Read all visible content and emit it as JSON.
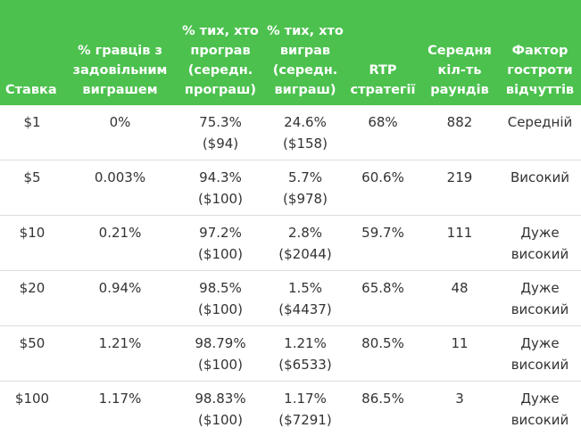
{
  "headers": [
    "Ставка",
    "% гравців з задовільним виграшем",
    "% тих, хто програв (середн. програш)",
    "% тих, хто виграв (середн. виграш)",
    "RTP стратегії",
    "Середня кіл-ть раундів",
    "Фактор гостроти відчуттів"
  ],
  "rows": [
    {
      "bet": "$1",
      "satisfied": "0%",
      "lost_pct": "75.3%",
      "lost_avg": "($94)",
      "won_pct": "24.6%",
      "won_avg": "($158)",
      "rtp": "68%",
      "rounds": "882",
      "thrill_1": "Середній",
      "thrill_2": ""
    },
    {
      "bet": "$5",
      "satisfied": "0.003%",
      "lost_pct": "94.3%",
      "lost_avg": "($100)",
      "won_pct": "5.7%",
      "won_avg": "($978)",
      "rtp": "60.6%",
      "rounds": "219",
      "thrill_1": "Високий",
      "thrill_2": ""
    },
    {
      "bet": "$10",
      "satisfied": "0.21%",
      "lost_pct": "97.2%",
      "lost_avg": "($100)",
      "won_pct": "2.8%",
      "won_avg": "($2044)",
      "rtp": "59.7%",
      "rounds": "111",
      "thrill_1": "Дуже",
      "thrill_2": "високий"
    },
    {
      "bet": "$20",
      "satisfied": "0.94%",
      "lost_pct": "98.5%",
      "lost_avg": "($100)",
      "won_pct": "1.5%",
      "won_avg": "($4437)",
      "rtp": "65.8%",
      "rounds": "48",
      "thrill_1": "Дуже",
      "thrill_2": "високий"
    },
    {
      "bet": "$50",
      "satisfied": "1.21%",
      "lost_pct": "98.79%",
      "lost_avg": "($100)",
      "won_pct": "1.21%",
      "won_avg": "($6533)",
      "rtp": "80.5%",
      "rounds": "11",
      "thrill_1": "Дуже",
      "thrill_2": "високий"
    },
    {
      "bet": "$100",
      "satisfied": "1.17%",
      "lost_pct": "98.83%",
      "lost_avg": "($100)",
      "won_pct": "1.17%",
      "won_avg": "($7291)",
      "rtp": "86.5%",
      "rounds": "3",
      "thrill_1": "Дуже",
      "thrill_2": "високий"
    }
  ],
  "colors": {
    "header_bg": "#4cc14e",
    "header_text": "#ffffff",
    "row_divider": "#dddddd"
  }
}
